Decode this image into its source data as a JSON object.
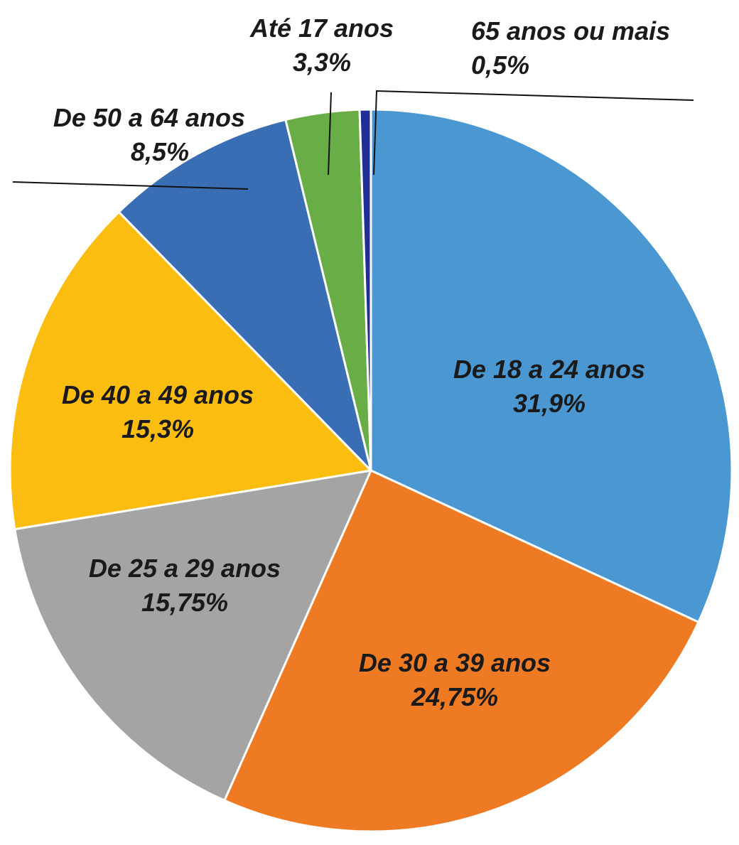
{
  "chart_data": {
    "type": "pie",
    "title": "",
    "unit": "%",
    "slices": [
      {
        "label": "De 18 a 24 anos",
        "value": 31.9,
        "value_label": "31,9%",
        "color": "#4a97d2"
      },
      {
        "label": "De 30 a 39 anos",
        "value": 24.75,
        "value_label": "24,75%",
        "color": "#ee7b23"
      },
      {
        "label": "De 25 a 29 anos",
        "value": 15.75,
        "value_label": "15,75%",
        "color": "#a4a4a4"
      },
      {
        "label": "De 40 a 49 anos",
        "value": 15.3,
        "value_label": "15,3%",
        "color": "#fcbd11"
      },
      {
        "label": "De 50 a 64 anos",
        "value": 8.5,
        "value_label": "8,5%",
        "color": "#396db4"
      },
      {
        "label": "Até 17 anos",
        "value": 3.3,
        "value_label": "3,3%",
        "color": "#69ad47"
      },
      {
        "label": "65 anos ou mais",
        "value": 0.5,
        "value_label": "0,5%",
        "color": "#1f2f96"
      }
    ],
    "start_direction": "12 o'clock",
    "direction": "clockwise"
  }
}
